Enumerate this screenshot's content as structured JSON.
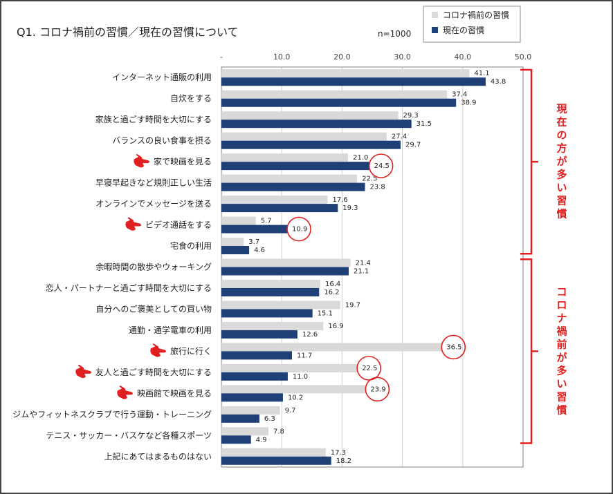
{
  "chart_data": {
    "type": "bar",
    "orientation": "horizontal",
    "title": "Q1. コロナ禍前の習慣／現在の習慣について",
    "sample_size": "n=1000",
    "x_ticks": [
      "-",
      "10.0",
      "20.0",
      "30.0",
      "40.0",
      "50.0"
    ],
    "xlim": [
      0,
      50
    ],
    "legend": [
      "コロナ禍前の習慣",
      "現在の習慣"
    ],
    "categories": [
      "インターネット通販の利用",
      "自炊をする",
      "家族と過ごす時間を大切にする",
      "バランスの良い食事を摂る",
      "家で映画を見る",
      "早寝早起きなど規則正しい生活",
      "オンラインでメッセージを送る",
      "ビデオ通話をする",
      "宅食の利用",
      "余暇時間の散歩やウォーキング",
      "恋人・パートナーと過ごす時間を大切にする",
      "自分へのご褒美としての買い物",
      "通勤・通学電車の利用",
      "旅行に行く",
      "友人と過ごす時間を大切にする",
      "映画館で映画を見る",
      "ジムやフィットネスクラブで行う運動・トレーニング",
      "テニス・サッカー・バスケなど各種スポーツ",
      "上記にあてはまるものはない"
    ],
    "series": [
      {
        "name": "コロナ禍前の習慣",
        "color": "#d9d9d9",
        "values": [
          41.1,
          37.4,
          29.3,
          27.4,
          21.0,
          22.5,
          17.6,
          5.7,
          3.7,
          21.4,
          16.4,
          19.7,
          16.9,
          36.5,
          22.5,
          23.9,
          9.7,
          7.8,
          17.3
        ],
        "labels": [
          "41.1",
          "37.4",
          "29.3",
          "27.4",
          "21.0",
          "22.5",
          "17.6",
          "5.7",
          "3.7",
          "21.4",
          "16.4",
          "19.7",
          "16.9",
          "36.5",
          "22.5",
          "23.9",
          "9.7",
          "7.8",
          "17.3"
        ]
      },
      {
        "name": "現在の習慣",
        "color": "#1f3f77",
        "values": [
          43.8,
          38.9,
          31.5,
          29.7,
          24.5,
          23.8,
          19.3,
          10.9,
          4.6,
          21.1,
          16.2,
          15.1,
          12.6,
          11.7,
          11.0,
          10.2,
          6.3,
          4.9,
          18.2
        ],
        "labels": [
          "43.8",
          "38.9",
          "31.5",
          "29.7",
          "24.5",
          "23.8",
          "19.3",
          "10.9",
          "4.6",
          "21.1",
          "16.2",
          "15.1",
          "12.6",
          "11.7",
          "11.0",
          "10.2",
          "6.3",
          "4.9",
          "18.2"
        ]
      }
    ],
    "highlighted_categories": [
      4,
      7,
      13,
      14,
      15
    ],
    "circled_labels": [
      {
        "category": 4,
        "series": 1
      },
      {
        "category": 7,
        "series": 1
      },
      {
        "category": 13,
        "series": 0
      },
      {
        "category": 14,
        "series": 0
      },
      {
        "category": 15,
        "series": 0
      }
    ],
    "annotations": [
      {
        "text": "現在の方が多い習慣",
        "from_category": 0,
        "to_category": 8
      },
      {
        "text": "コロナ禍前が多い習慣",
        "from_category": 9,
        "to_category": 17
      }
    ]
  },
  "colors": {
    "accent": "#e02020",
    "grid": "#d0d0d0",
    "text": "#222222",
    "axis": "#7f7f7f"
  }
}
